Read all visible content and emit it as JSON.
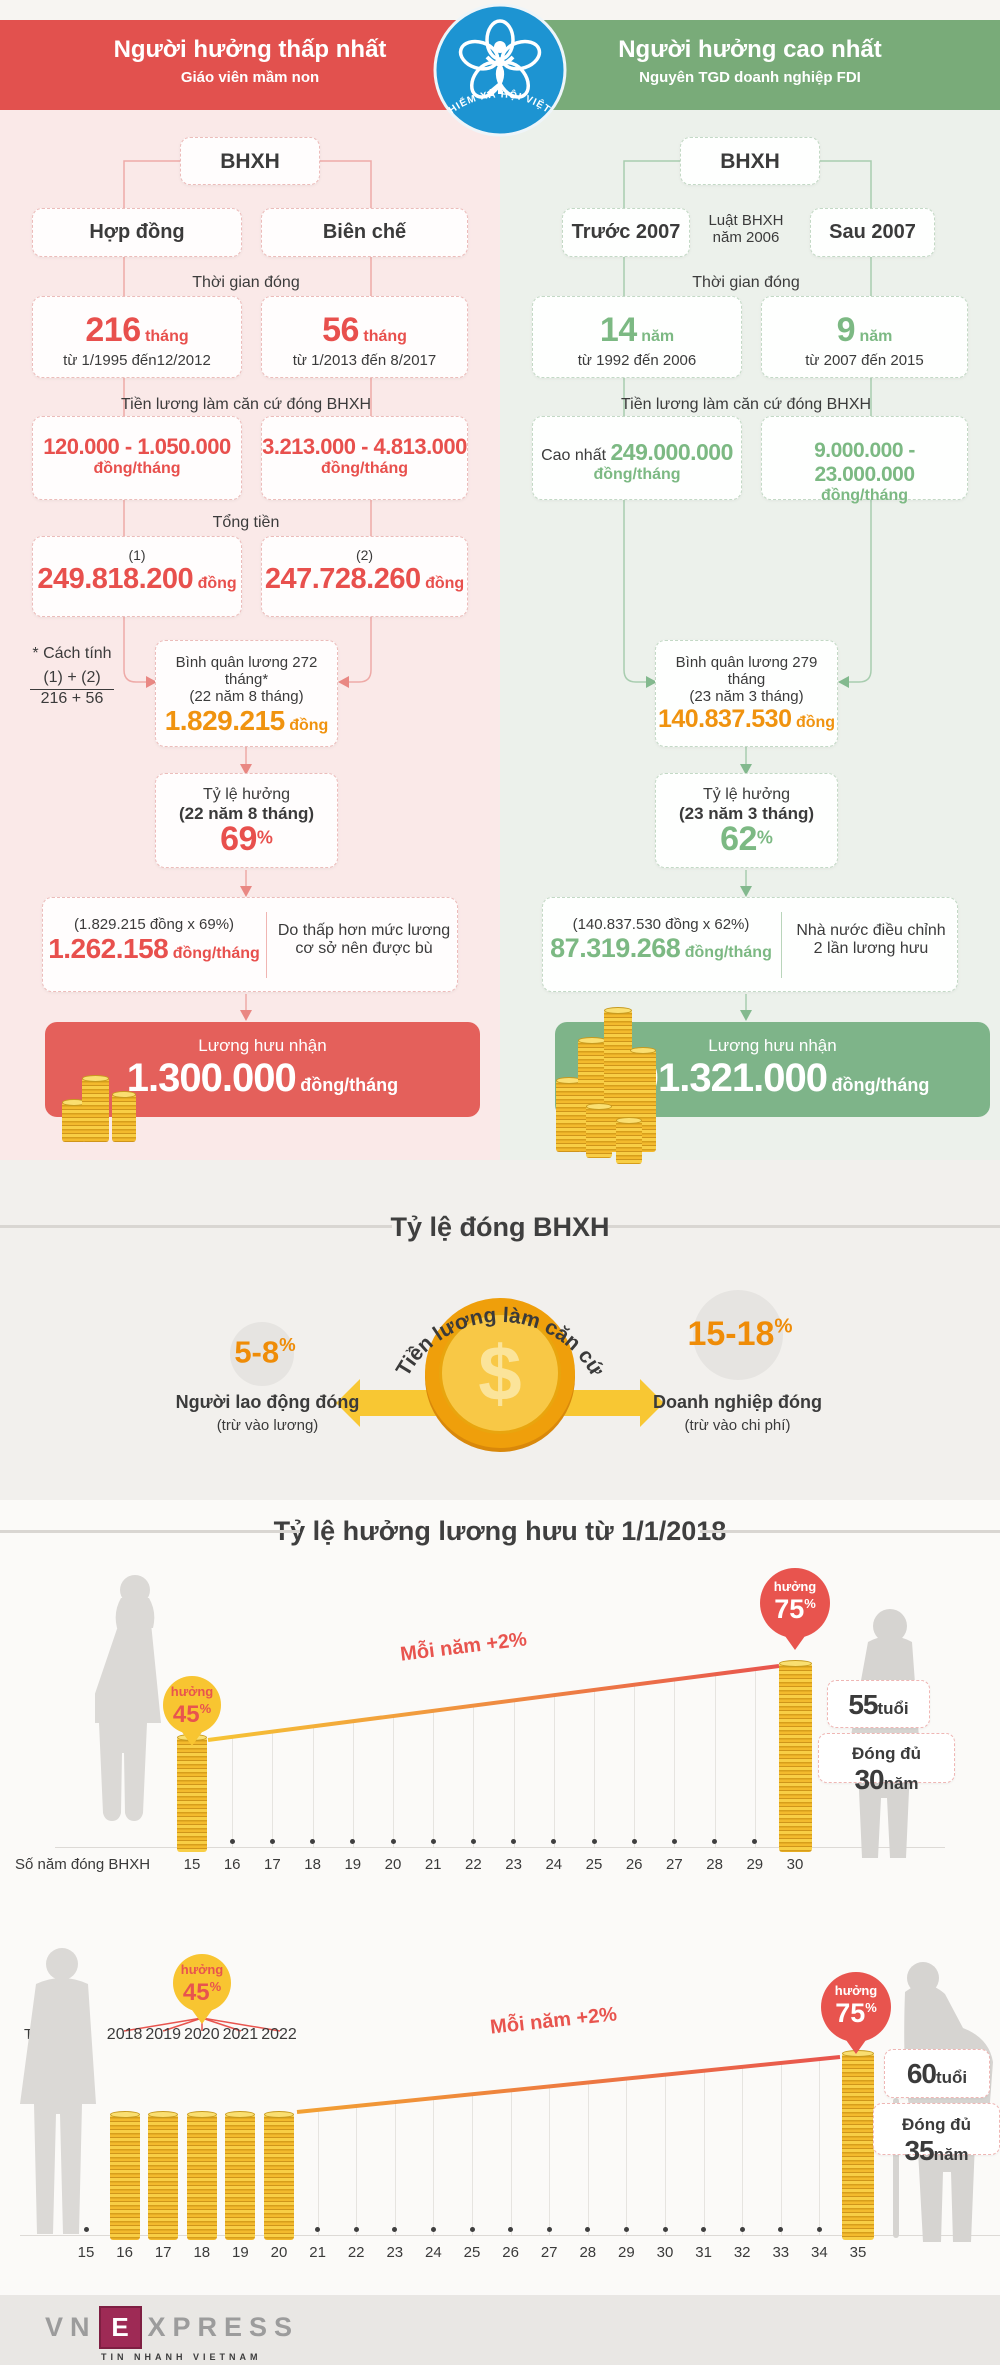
{
  "logo": {
    "text": "BẢO HIỂM XÃ HỘI VIỆT NAM",
    "color": "#1d94d2"
  },
  "header": {
    "left": {
      "title": "Người hưởng thấp nhất",
      "subtitle": "Giáo viên mầm non",
      "color": "#e2514e"
    },
    "right": {
      "title": "Người hưởng cao nhất",
      "subtitle": "Nguyên TGD doanh nghiệp FDI",
      "color": "#79ab79"
    }
  },
  "left_flow": {
    "root": "BHXH",
    "branch1": "Hợp đồng",
    "branch2": "Biên chế",
    "time_label": "Thời gian đóng",
    "time1_value": "216",
    "time1_unit": "tháng",
    "time1_range": "từ 1/1995 đến12/2012",
    "time2_value": "56",
    "time2_unit": "tháng",
    "time2_range": "từ 1/2013 đến 8/2017",
    "salary_label": "Tiền lương làm căn cứ đóng BHXH",
    "salary1_value": "120.000 - 1.050.000",
    "salary1_unit": "đồng/tháng",
    "salary2_value": "3.213.000 - 4.813.000",
    "salary2_unit": "đồng/tháng",
    "total_label": "Tổng tiền",
    "total1_tag": "(1)",
    "total1_value": "249.818.200",
    "total1_unit": "đồng",
    "total2_tag": "(2)",
    "total2_value": "247.728.260",
    "total2_unit": "đồng",
    "note_title": "* Cách tính",
    "note_num": "(1) + (2)",
    "note_den": "216 + 56",
    "avg_line1": "Bình quân lương 272 tháng*",
    "avg_line2": "(22 năm 8 tháng)",
    "avg_value": "1.829.215",
    "avg_unit": "đồng",
    "rate_line1": "Tỷ lệ hưởng",
    "rate_line2": "(22 năm 8 tháng)",
    "rate_value": "69",
    "rate_unit": "%",
    "calc_formula": "(1.829.215 đồng x 69%)",
    "calc_value": "1.262.158",
    "calc_unit": "đồng/tháng",
    "calc_note": "Do thấp hơn mức lương cơ sở nên được bù",
    "final_label": "Lương hưu nhận",
    "final_value": "1.300.000",
    "final_unit": "đồng/tháng"
  },
  "right_flow": {
    "root": "BHXH",
    "branch1": "Trước 2007",
    "branch_mid1": "Luật BHXH",
    "branch_mid2": "năm 2006",
    "branch2": "Sau 2007",
    "time_label": "Thời gian đóng",
    "time1_value": "14",
    "time1_unit": "năm",
    "time1_range": "từ 1992 đến 2006",
    "time2_value": "9",
    "time2_unit": "năm",
    "time2_range": "từ 2007 đến 2015",
    "salary_label": "Tiền lương làm căn cứ đóng BHXH",
    "salary1_prefix": "Cao nhất",
    "salary1_value": "249.000.000",
    "salary1_unit": "đồng/tháng",
    "salary2_value": "9.000.000 - 23.000.000",
    "salary2_unit": "đồng/tháng",
    "avg_line1": "Bình quân lương 279 tháng",
    "avg_line2": "(23 năm 3 tháng)",
    "avg_value": "140.837.530",
    "avg_unit": "đồng",
    "rate_line1": "Tỷ lệ hưởng",
    "rate_line2": "(23 năm 3 tháng)",
    "rate_value": "62",
    "rate_unit": "%",
    "calc_formula": "(140.837.530 đồng x 62%)",
    "calc_value": "87.319.268",
    "calc_unit": "đồng/tháng",
    "calc_note": "Nhà nước điều chỉnh 2 lần lương hưu",
    "final_label": "Lương hưu nhận",
    "final_value": "101.321.000",
    "final_unit": "đồng/tháng"
  },
  "contribution": {
    "title": "Tỷ lệ đóng BHXH",
    "coin_caption": "Tiền lương làm căn cứ",
    "coin_symbol": "$",
    "left": {
      "pct": "5-8",
      "pct_unit": "%",
      "label": "Người lao động đóng",
      "note": "(trừ vào lương)"
    },
    "right": {
      "pct": "15-18",
      "pct_unit": "%",
      "label": "Doanh nghiệp đóng",
      "note": "(trừ vào chi phí)"
    }
  },
  "pension": {
    "title": "Tỷ lệ hưởng lương hưu từ 1/1/2018"
  },
  "chart1": {
    "axis_label": "Số năm đóng BHXH",
    "ticks": [
      "15",
      "16",
      "17",
      "18",
      "19",
      "20",
      "21",
      "22",
      "23",
      "24",
      "25",
      "26",
      "27",
      "28",
      "29",
      "30"
    ],
    "badge_word": "hưởng",
    "badge_low": "45",
    "badge_high": "75",
    "pct": "%",
    "slope_label": "Mỗi năm +2%",
    "age_num": "55",
    "age_unit": "tuổi",
    "dur_pre": "Đóng đủ ",
    "dur_num": "30",
    "dur_unit": "năm"
  },
  "chart2": {
    "time_label": "Thời điểm",
    "years": [
      "2018",
      "2019",
      "2020",
      "2021",
      "2022"
    ],
    "ticks": [
      "15",
      "16",
      "17",
      "18",
      "19",
      "20",
      "21",
      "22",
      "23",
      "24",
      "25",
      "26",
      "27",
      "28",
      "29",
      "30",
      "31",
      "32",
      "33",
      "34",
      "35"
    ],
    "badge_word": "hưởng",
    "badge_low": "45",
    "badge_high": "75",
    "pct": "%",
    "slope_label": "Mỗi năm +2%",
    "age_num": "60",
    "age_unit": "tuổi",
    "dur_pre": "Đóng đủ ",
    "dur_num": "35",
    "dur_unit": "năm"
  },
  "footer": {
    "brand_pre": "VN",
    "brand_e": "E",
    "brand_post": "XPRESS",
    "tagline": "TIN NHANH VIETNAM"
  },
  "chart_data": [
    {
      "type": "line",
      "title": "Tỷ lệ hưởng lương hưu từ 1/1/2018 (nghỉ hưu 55 tuổi)",
      "xlabel": "Số năm đóng BHXH",
      "x": [
        15,
        16,
        17,
        18,
        19,
        20,
        21,
        22,
        23,
        24,
        25,
        26,
        27,
        28,
        29,
        30
      ],
      "y": [
        45,
        47,
        49,
        51,
        53,
        55,
        57,
        59,
        61,
        63,
        65,
        67,
        69,
        71,
        73,
        75
      ],
      "ylim": [
        45,
        75
      ],
      "annotations": [
        "hưởng 45%",
        "Mỗi năm +2%",
        "hưởng 75%",
        "55 tuổi",
        "Đóng đủ 30 năm"
      ]
    },
    {
      "type": "line",
      "title": "Tỷ lệ hưởng lương hưu từ 1/1/2018 (nghỉ hưu 60 tuổi)",
      "xlabel": "Số năm đóng BHXH",
      "x": [
        20,
        21,
        22,
        23,
        24,
        25,
        26,
        27,
        28,
        29,
        30,
        31,
        32,
        33,
        34,
        35
      ],
      "y": [
        45,
        47,
        49,
        51,
        53,
        55,
        57,
        59,
        61,
        63,
        65,
        67,
        69,
        71,
        73,
        75
      ],
      "ylim": [
        45,
        75
      ],
      "secondary_axis": {
        "label": "Thời điểm",
        "years": [
          "2018",
          "2019",
          "2020",
          "2021",
          "2022"
        ],
        "at_x": [
          16,
          17,
          18,
          19,
          20
        ]
      },
      "annotations": [
        "hưởng 45%",
        "Mỗi năm +2%",
        "hưởng 75%",
        "60 tuổi",
        "Đóng đủ 35 năm"
      ]
    }
  ]
}
